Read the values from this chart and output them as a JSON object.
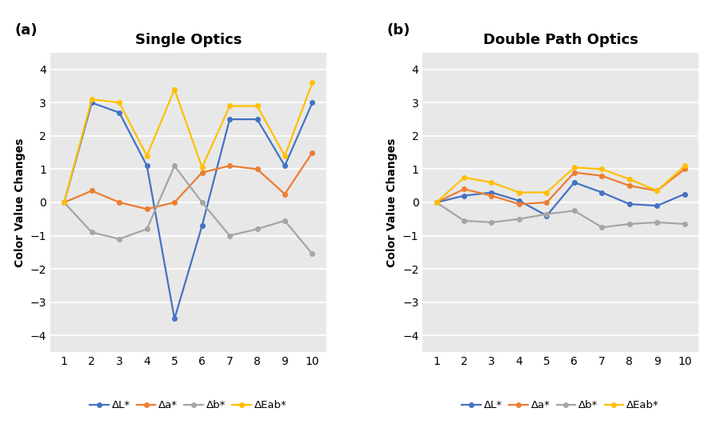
{
  "x": [
    1,
    2,
    3,
    4,
    5,
    6,
    7,
    8,
    9,
    10
  ],
  "panel_a": {
    "title": "Single Optics",
    "dL": [
      0,
      3.0,
      2.7,
      1.1,
      -3.5,
      -0.7,
      2.5,
      2.5,
      1.1,
      3.0
    ],
    "da": [
      0,
      0.35,
      0.0,
      -0.2,
      0.0,
      0.9,
      1.1,
      1.0,
      0.25,
      1.5
    ],
    "db": [
      0,
      -0.9,
      -1.1,
      -0.8,
      1.1,
      0.0,
      -1.0,
      -0.8,
      -0.55,
      -1.55
    ],
    "dE": [
      0,
      3.1,
      3.0,
      1.4,
      3.4,
      1.05,
      2.9,
      2.9,
      1.4,
      3.6
    ]
  },
  "panel_b": {
    "title": "Double Path Optics",
    "dL": [
      0,
      0.2,
      0.3,
      0.05,
      -0.4,
      0.6,
      0.3,
      -0.05,
      -0.1,
      0.25
    ],
    "da": [
      0,
      0.4,
      0.2,
      -0.05,
      0.0,
      0.9,
      0.8,
      0.5,
      0.35,
      1.0
    ],
    "db": [
      0,
      -0.55,
      -0.6,
      -0.5,
      -0.35,
      -0.25,
      -0.75,
      -0.65,
      -0.6,
      -0.65
    ],
    "dE": [
      0,
      0.75,
      0.6,
      0.3,
      0.3,
      1.05,
      1.0,
      0.7,
      0.35,
      1.1
    ]
  },
  "colors": {
    "dL": "#4472C4",
    "da": "#ED7D31",
    "db": "#A5A5A5",
    "dE": "#FFC000"
  },
  "legend_labels": [
    "ΔL*",
    "Δa*",
    "Δb*",
    "ΔEab*"
  ],
  "ylabel": "Color Value Changes",
  "ylim": [
    -4.5,
    4.5
  ],
  "yticks": [
    -4,
    -3,
    -2,
    -1,
    0,
    1,
    2,
    3,
    4
  ],
  "bg_color": "#E8E8E8",
  "marker": "o",
  "marker_size": 4,
  "linewidth": 1.6,
  "panel_labels": [
    "(a)",
    "(b)"
  ]
}
